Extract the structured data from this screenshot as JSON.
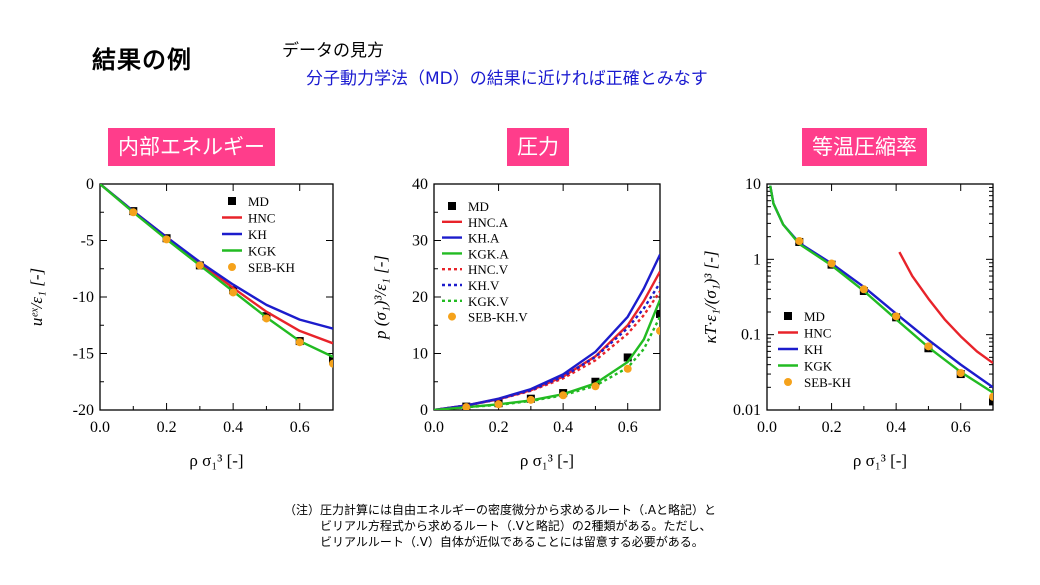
{
  "slide": {
    "title": "結果の例",
    "intro_heading": "データの見方",
    "intro_body": "分子動力学法（MD）の結果に近ければ正確とみなす"
  },
  "badges": [
    "内部エネルギー",
    "圧力",
    "等温圧縮率"
  ],
  "notes": [
    "（注）圧力計算には自由エネルギーの密度微分から求めるルート（.Aと略記）と",
    "ビリアル方程式から求めるルート（.Vと略記）の2種類がある。ただし、",
    "ビリアルルート（.V）自体が近似であることには留意する必要がある。"
  ],
  "colors": {
    "badge": "#ff3d8b",
    "intro": "#1a1ad0",
    "red": "#e8232a",
    "blue": "#1c1ccc",
    "green": "#22bb22",
    "orange": "#f5a21b"
  },
  "chart_data": [
    {
      "type": "line",
      "xlim": [
        0,
        0.7
      ],
      "ylim": [
        -20,
        0
      ],
      "xticks": [
        "0.0",
        "0.2",
        "0.4",
        "0.6"
      ],
      "yticks": [
        "0",
        "-5",
        "-10",
        "-15",
        "-20"
      ],
      "xlabel": "ρ σ₁³ [-]",
      "ylabel": "uᵉˣ/ε₁ [-]",
      "legend_position": "top-right",
      "series": [
        {
          "name": "MD",
          "kind": "square",
          "color": "#000000",
          "x": [
            0.1,
            0.2,
            0.3,
            0.4,
            0.5,
            0.6,
            0.7
          ],
          "y": [
            -2.4,
            -4.8,
            -7.2,
            -9.4,
            -11.7,
            -13.9,
            -15.6
          ]
        },
        {
          "name": "HNC",
          "kind": "line",
          "dash": "solid",
          "color": "#e8232a",
          "x": [
            0,
            0.1,
            0.2,
            0.3,
            0.4,
            0.5,
            0.6,
            0.7
          ],
          "y": [
            0,
            -2.4,
            -4.7,
            -7.0,
            -9.2,
            -11.3,
            -13.0,
            -14.1
          ]
        },
        {
          "name": "KH",
          "kind": "line",
          "dash": "solid",
          "color": "#1c1ccc",
          "x": [
            0,
            0.1,
            0.2,
            0.3,
            0.4,
            0.5,
            0.6,
            0.7
          ],
          "y": [
            0,
            -2.4,
            -4.7,
            -6.9,
            -8.9,
            -10.7,
            -12.0,
            -12.8
          ]
        },
        {
          "name": "KGK",
          "kind": "line",
          "dash": "solid",
          "color": "#22bb22",
          "x": [
            0,
            0.1,
            0.2,
            0.3,
            0.4,
            0.5,
            0.6,
            0.7
          ],
          "y": [
            0,
            -2.5,
            -4.9,
            -7.2,
            -9.5,
            -11.8,
            -13.9,
            -15.3
          ]
        },
        {
          "name": "SEB-KH",
          "kind": "dot",
          "color": "#f5a21b",
          "x": [
            0.1,
            0.2,
            0.3,
            0.4,
            0.5,
            0.6,
            0.7
          ],
          "y": [
            -2.5,
            -4.9,
            -7.2,
            -9.6,
            -11.9,
            -14.0,
            -15.9
          ]
        }
      ]
    },
    {
      "type": "line",
      "xlim": [
        0,
        0.7
      ],
      "ylim": [
        0,
        40
      ],
      "xticks": [
        "0.0",
        "0.2",
        "0.4",
        "0.6"
      ],
      "yticks": [
        "0",
        "10",
        "20",
        "30",
        "40"
      ],
      "xlabel": "ρ σ₁³ [-]",
      "ylabel": "p (σ₁)³/ε₁ [-]",
      "legend_position": "top-left",
      "series": [
        {
          "name": "MD",
          "kind": "square",
          "color": "#000000",
          "x": [
            0.1,
            0.2,
            0.3,
            0.4,
            0.5,
            0.6,
            0.7
          ],
          "y": [
            0.6,
            1.2,
            2.0,
            3.0,
            5.0,
            9.3,
            17.0
          ]
        },
        {
          "name": "HNC.A",
          "kind": "line",
          "dash": "solid",
          "color": "#e8232a",
          "x": [
            0,
            0.1,
            0.2,
            0.3,
            0.4,
            0.5,
            0.6,
            0.65,
            0.7
          ],
          "y": [
            0,
            0.8,
            1.9,
            3.5,
            5.9,
            9.5,
            15.0,
            19.3,
            24.5
          ]
        },
        {
          "name": "KH.A",
          "kind": "line",
          "dash": "solid",
          "color": "#1c1ccc",
          "x": [
            0,
            0.1,
            0.2,
            0.3,
            0.4,
            0.5,
            0.6,
            0.65,
            0.7
          ],
          "y": [
            0,
            0.8,
            2.0,
            3.7,
            6.3,
            10.3,
            16.5,
            21.5,
            27.5
          ]
        },
        {
          "name": "KGK.A",
          "kind": "line",
          "dash": "solid",
          "color": "#22bb22",
          "x": [
            0,
            0.1,
            0.2,
            0.3,
            0.4,
            0.5,
            0.6,
            0.65,
            0.7
          ],
          "y": [
            0,
            0.5,
            1.0,
            1.7,
            2.8,
            4.7,
            8.5,
            12.5,
            19.5
          ]
        },
        {
          "name": "HNC.V",
          "kind": "line",
          "dash": "dot",
          "color": "#e8232a",
          "x": [
            0,
            0.1,
            0.2,
            0.3,
            0.4,
            0.5,
            0.6,
            0.65,
            0.7
          ],
          "y": [
            0,
            0.8,
            1.9,
            3.4,
            5.6,
            8.8,
            13.5,
            16.8,
            21.0
          ]
        },
        {
          "name": "KH.V",
          "kind": "line",
          "dash": "dot",
          "color": "#1c1ccc",
          "x": [
            0,
            0.1,
            0.2,
            0.3,
            0.4,
            0.5,
            0.6,
            0.65,
            0.7
          ],
          "y": [
            0,
            0.8,
            1.9,
            3.5,
            5.9,
            9.4,
            14.5,
            18.0,
            22.5
          ]
        },
        {
          "name": "KGK.V",
          "kind": "line",
          "dash": "dot",
          "color": "#22bb22",
          "x": [
            0,
            0.1,
            0.2,
            0.3,
            0.4,
            0.5,
            0.6,
            0.65,
            0.7
          ],
          "y": [
            0,
            0.5,
            0.9,
            1.6,
            2.6,
            4.3,
            7.5,
            10.8,
            16.5
          ]
        },
        {
          "name": "SEB-KH.V",
          "kind": "dot",
          "color": "#f5a21b",
          "x": [
            0.1,
            0.2,
            0.3,
            0.4,
            0.5,
            0.6,
            0.7
          ],
          "y": [
            0.5,
            1.0,
            1.8,
            2.6,
            4.2,
            7.3,
            14.0
          ]
        }
      ]
    },
    {
      "type": "line",
      "yscale": "log",
      "xlim": [
        0,
        0.7
      ],
      "ylim": [
        0.01,
        10
      ],
      "xticks": [
        "0.0",
        "0.2",
        "0.4",
        "0.6"
      ],
      "yticks": [
        "10",
        "1",
        "0.1",
        "0.01"
      ],
      "xlabel": "ρ σ₁³ [-]",
      "ylabel": "κT·ε₁/(σ₁)³ [-]",
      "legend_position": "bottom-left",
      "series": [
        {
          "name": "MD",
          "kind": "square",
          "color": "#000000",
          "x": [
            0.1,
            0.2,
            0.3,
            0.4,
            0.5,
            0.6,
            0.7
          ],
          "y": [
            1.7,
            0.85,
            0.38,
            0.17,
            0.066,
            0.03,
            0.013
          ]
        },
        {
          "name": "HNC",
          "kind": "line",
          "dash": "solid",
          "color": "#e8232a",
          "x": [
            0.41,
            0.45,
            0.5,
            0.55,
            0.6,
            0.65,
            0.7
          ],
          "y": [
            1.25,
            0.6,
            0.3,
            0.16,
            0.095,
            0.06,
            0.042
          ]
        },
        {
          "name": "KH",
          "kind": "line",
          "dash": "solid",
          "color": "#1c1ccc",
          "x": [
            0.01,
            0.02,
            0.05,
            0.1,
            0.2,
            0.3,
            0.4,
            0.5,
            0.6,
            0.7
          ],
          "y": [
            9.5,
            5.5,
            2.9,
            1.65,
            0.88,
            0.43,
            0.19,
            0.085,
            0.04,
            0.02
          ]
        },
        {
          "name": "KGK",
          "kind": "line",
          "dash": "solid",
          "color": "#22bb22",
          "x": [
            0.01,
            0.02,
            0.05,
            0.1,
            0.2,
            0.3,
            0.4,
            0.5,
            0.6,
            0.7
          ],
          "y": [
            9.5,
            5.5,
            2.9,
            1.6,
            0.83,
            0.38,
            0.16,
            0.068,
            0.032,
            0.017
          ]
        },
        {
          "name": "SEB-KH",
          "kind": "dot",
          "color": "#f5a21b",
          "x": [
            0.1,
            0.2,
            0.3,
            0.4,
            0.5,
            0.6,
            0.7
          ],
          "y": [
            1.75,
            0.88,
            0.4,
            0.175,
            0.07,
            0.031,
            0.015
          ]
        }
      ]
    }
  ]
}
